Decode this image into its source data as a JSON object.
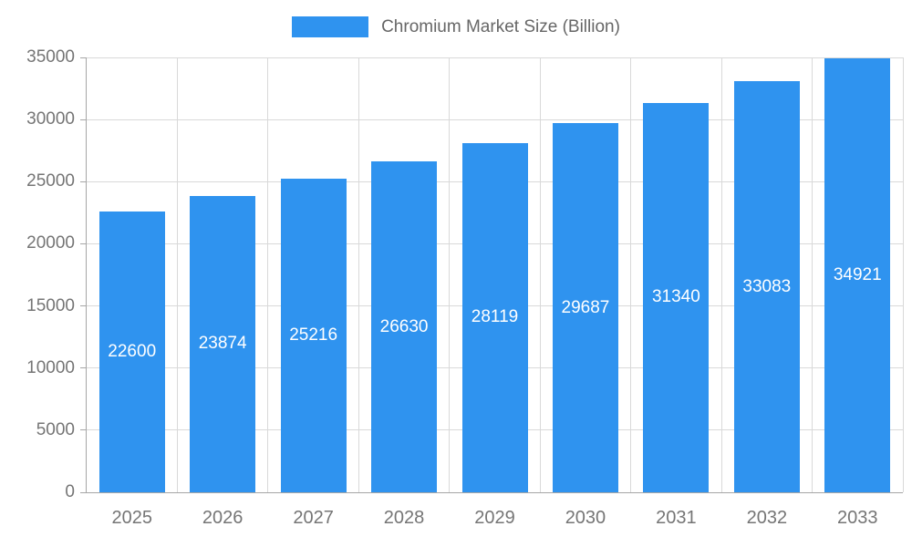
{
  "chart_data": {
    "type": "bar",
    "title": "Chromium Market Size (Billion)",
    "categories": [
      "2025",
      "2026",
      "2027",
      "2028",
      "2029",
      "2030",
      "2031",
      "2032",
      "2033"
    ],
    "values": [
      22600,
      23874,
      25216,
      26630,
      28119,
      29687,
      31340,
      33083,
      34921
    ],
    "xlabel": "",
    "ylabel": "",
    "ylim": [
      0,
      35000
    ],
    "yticks": [
      0,
      5000,
      10000,
      15000,
      20000,
      25000,
      30000,
      35000
    ],
    "grid": true,
    "legend_position": "top",
    "data_labels": "inside-center",
    "colors": {
      "bar": "#2F93EF",
      "axis_line": "#a6a6a6",
      "grid_line": "#d9d9d9",
      "axis_text": "#757575",
      "legend_text": "#666666",
      "data_label_text": "#ffffff",
      "background": "#ffffff"
    }
  },
  "legend": {
    "label": "Chromium Market Size (Billion)"
  }
}
